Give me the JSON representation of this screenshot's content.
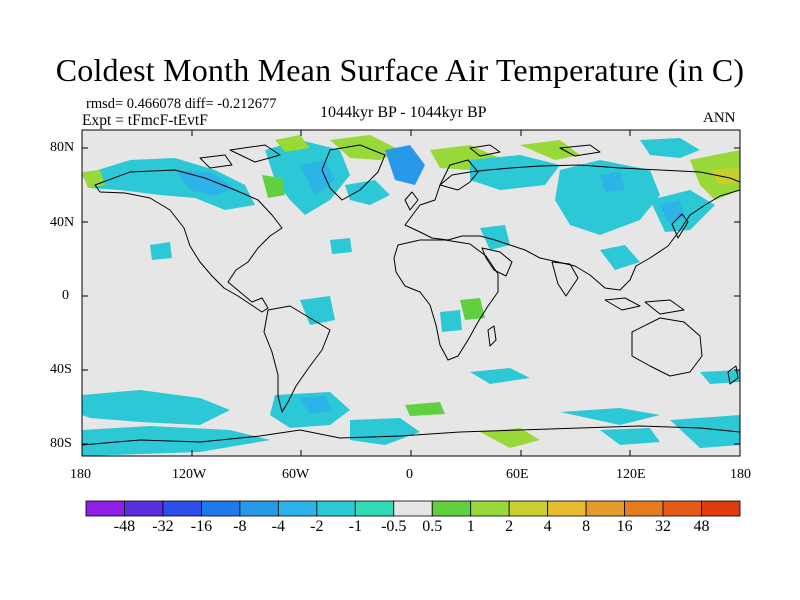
{
  "title": "Coldest Month Mean Surface Air Temperature (in C)",
  "stats": "rmsd= 0.466078 diff= -0.212677",
  "experiment": "Expt = tFmcF-tEvtF",
  "period": "1044kyr BP - 1044kyr BP",
  "season": "ANN",
  "y_ticks": [
    "80N",
    "40N",
    "0",
    "40S",
    "80S"
  ],
  "x_ticks": [
    "180",
    "120W",
    "60W",
    "0",
    "60E",
    "120E",
    "180"
  ],
  "colorbar": {
    "colors": [
      "#8f1fe6",
      "#5a2ee0",
      "#2d4ee8",
      "#1e7ae8",
      "#2898e8",
      "#2cb3e8",
      "#2cc8d6",
      "#30dcb8",
      "#e6e6e6",
      "#60d040",
      "#98d838",
      "#c8d030",
      "#e6bc30",
      "#e69c28",
      "#e67c20",
      "#e65a18",
      "#e03a10"
    ],
    "labels": [
      "-48",
      "-32",
      "-16",
      "-8",
      "-4",
      "-2",
      "-1",
      "-0.5",
      "0.5",
      "1",
      "2",
      "4",
      "8",
      "16",
      "32",
      "48"
    ]
  },
  "legend_colors": {
    "neutral": "#e6e6e6",
    "cool_light": "#30dcb8",
    "cool": "#2cc8d6",
    "cool_mid": "#2cb3e8",
    "cool_deep": "#2898e8",
    "warm_light": "#60d040",
    "warm": "#98d838",
    "warm_mid": "#c8d030"
  }
}
